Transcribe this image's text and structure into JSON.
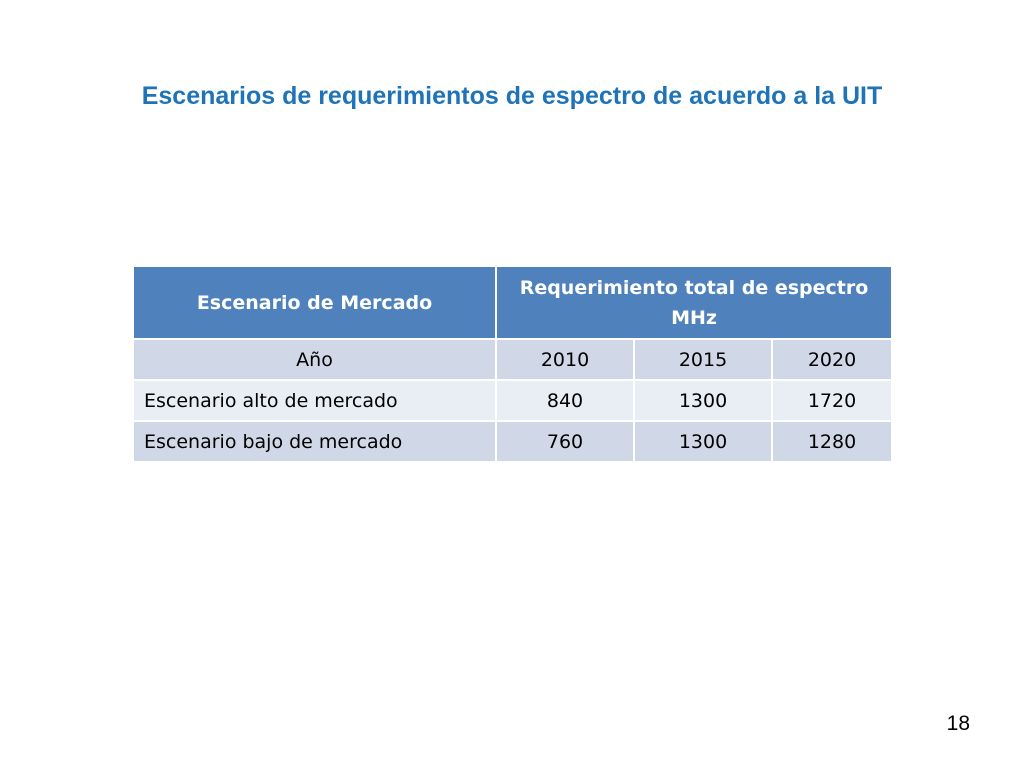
{
  "slide": {
    "title": "Escenarios de requerimientos de espectro de acuerdo a la UIT",
    "page_number": "18"
  },
  "table": {
    "headers": [
      "Escenario de Mercado",
      "Requerimiento total de espectro MHz"
    ],
    "rows": [
      {
        "label": "Año",
        "values": [
          "2010",
          "2015",
          "2020"
        ]
      },
      {
        "label": "Escenario alto de mercado",
        "values": [
          "840",
          "1300",
          "1720"
        ]
      },
      {
        "label": "Escenario bajo de mercado",
        "values": [
          "760",
          "1300",
          "1280"
        ]
      }
    ]
  },
  "colors": {
    "title": "#1f73b7",
    "header_bg": "#4f81bd",
    "row_dark": "#d0d8e8",
    "row_light": "#e9edf4"
  }
}
